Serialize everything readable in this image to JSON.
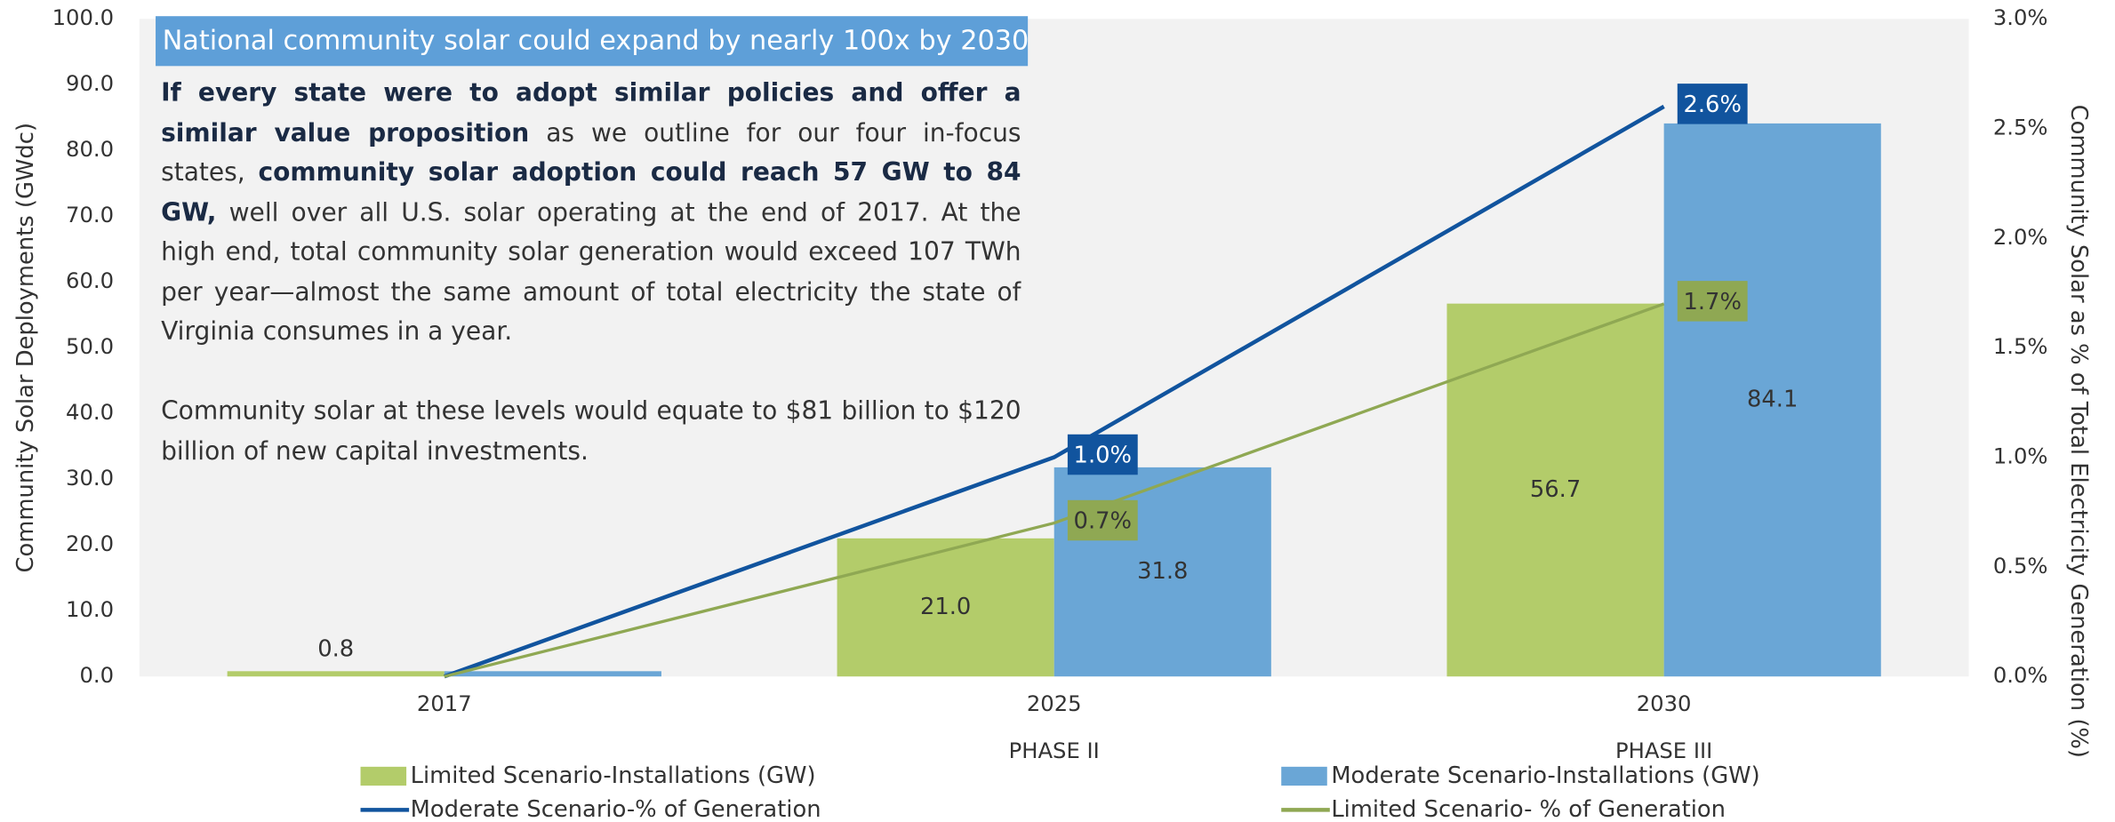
{
  "chart_data": {
    "type": "bar",
    "title": "National community solar could expand by nearly 100x by 2030",
    "categories": [
      "2017",
      "2025",
      "2030"
    ],
    "phases": [
      null,
      "PHASE II",
      "PHASE III"
    ],
    "ylabel": "Community Solar Deployments (GWdc)",
    "y2label": "Community Solar as % of Total Electricity Generation (%)",
    "ylim": [
      0,
      100
    ],
    "yticks": [
      {
        "value": 0,
        "label": "0.0"
      },
      {
        "value": 10,
        "label": "10.0"
      },
      {
        "value": 20,
        "label": "20.0"
      },
      {
        "value": 30,
        "label": "30.0"
      },
      {
        "value": 40,
        "label": "40.0"
      },
      {
        "value": 50,
        "label": "50.0"
      },
      {
        "value": 60,
        "label": "60.0"
      },
      {
        "value": 70,
        "label": "70.0"
      },
      {
        "value": 80,
        "label": "80.0"
      },
      {
        "value": 90,
        "label": "90.0"
      },
      {
        "value": 100,
        "label": "100.0"
      }
    ],
    "y2lim": [
      0,
      3
    ],
    "y2ticks": [
      {
        "value": 0,
        "label": "0.0%"
      },
      {
        "value": 0.5,
        "label": "0.5%"
      },
      {
        "value": 1,
        "label": "1.0%"
      },
      {
        "value": 1.5,
        "label": "1.5%"
      },
      {
        "value": 2,
        "label": "2.0%"
      },
      {
        "value": 2.5,
        "label": "2.5%"
      },
      {
        "value": 3,
        "label": "3.0%"
      }
    ],
    "series": [
      {
        "name": "Limited Scenario-Installations (GW)",
        "type": "bar",
        "color": "#b3cc6a",
        "values": [
          0.8,
          21.0,
          56.7
        ],
        "value_labels": [
          "0.8",
          "21.0",
          "56.7"
        ]
      },
      {
        "name": "Moderate Scenario-Installations (GW)",
        "type": "bar",
        "color": "#6aa6d6",
        "values": [
          0.8,
          31.8,
          84.1
        ],
        "value_labels": [
          null,
          "31.8",
          "84.1"
        ]
      },
      {
        "name": "Moderate Scenario-% of Generation",
        "type": "line",
        "axis": "y2",
        "color": "#11549e",
        "values": [
          0,
          1.0,
          2.6
        ],
        "value_labels": [
          null,
          "1.0%",
          "2.6%"
        ]
      },
      {
        "name": "Limited Scenario- % of Generation",
        "type": "line",
        "axis": "y2",
        "color": "#8fa853",
        "values": [
          0,
          0.7,
          1.7
        ],
        "value_labels": [
          null,
          "0.7%",
          "1.7%"
        ]
      }
    ],
    "annotation": [
      [
        {
          "text": "If every state were to adopt similar policies and offer a similar value proposition",
          "bold": true
        },
        {
          "text": " as we outline for our four in-focus states, ",
          "bold": false
        },
        {
          "text": "community solar adoption could reach 57 GW to 84 GW,",
          "bold": true
        },
        {
          "text": " well over all U.S. solar operating at the end of 2017. At the high end, total community solar generation would exceed 107 TWh per year—almost the same amount of total electricity the state of Virginia consumes in a year.",
          "bold": false
        }
      ],
      [
        {
          "text": "Community solar at these levels would equate to $81 billion to $120 billion of new capital investments.",
          "bold": false
        }
      ]
    ]
  }
}
